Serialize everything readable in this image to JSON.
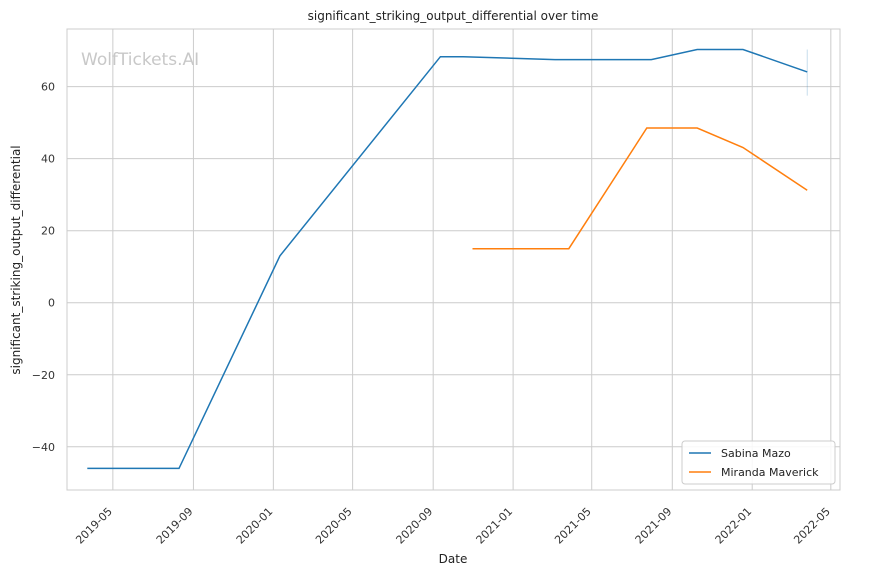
{
  "chart_data": {
    "type": "line",
    "title": "significant_striking_output_differential over time",
    "xlabel": "Date",
    "ylabel": "significant_striking_output_differential",
    "watermark": "WolfTickets.AI",
    "xlim": [
      "2019-02-20",
      "2022-05-15"
    ],
    "ylim": [
      -52,
      76
    ],
    "x_ticks": [
      "2019-05",
      "2019-09",
      "2020-01",
      "2020-05",
      "2020-09",
      "2021-01",
      "2021-05",
      "2021-09",
      "2022-01",
      "2022-05"
    ],
    "y_ticks": [
      -40,
      -20,
      0,
      20,
      40,
      60
    ],
    "y_tick_labels": [
      "−40",
      "−20",
      "0",
      "20",
      "40",
      "60"
    ],
    "grid": true,
    "legend": "bottom-right",
    "series": [
      {
        "name": "Sabina Mazo",
        "color": "#1f77b4",
        "points": [
          [
            "2019-03-23",
            -46
          ],
          [
            "2019-08-10",
            -46
          ],
          [
            "2020-01-11",
            13
          ],
          [
            "2020-09-12",
            68.3
          ],
          [
            "2020-10-17",
            68.3
          ],
          [
            "2021-03-06",
            67.5
          ],
          [
            "2021-07-31",
            67.5
          ],
          [
            "2021-10-09",
            70.3
          ],
          [
            "2021-12-18",
            70.3
          ],
          [
            "2022-03-26",
            64.1
          ]
        ]
      },
      {
        "name": "Miranda Maverick",
        "color": "#ff7f0e",
        "points": [
          [
            "2020-10-31",
            15
          ],
          [
            "2021-03-27",
            15
          ],
          [
            "2021-07-24",
            48.5
          ],
          [
            "2021-10-09",
            48.5
          ],
          [
            "2021-12-18",
            43.1
          ],
          [
            "2022-03-26",
            31.2
          ]
        ]
      }
    ]
  }
}
